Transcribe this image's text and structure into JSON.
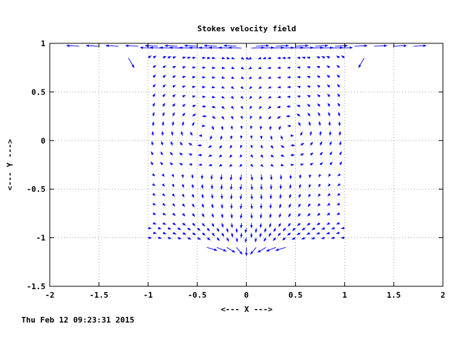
{
  "chart_data": {
    "type": "quiver",
    "title": "Stokes velocity field",
    "xlabel": "<--- X --->",
    "ylabel": "<--- Y --->",
    "xlim": [
      -2,
      2
    ],
    "ylim": [
      -1.5,
      1
    ],
    "xticks": [
      "-2",
      "-1.5",
      "-1",
      "-0.5",
      "0",
      "0.5",
      "1",
      "1.5",
      "2"
    ],
    "yticks": [
      "1",
      "0.5",
      "0",
      "-0.5",
      "-1",
      "-1.5"
    ],
    "xtick_values": [
      -2,
      -1.5,
      -1,
      -0.5,
      0,
      0.5,
      1,
      1.5,
      2
    ],
    "ytick_values": [
      1,
      0.5,
      0,
      -0.5,
      -1,
      -1.5
    ],
    "grid": true,
    "grid_style": "dotted",
    "domain_box": {
      "x": [
        -1,
        1
      ],
      "y": [
        -1,
        1
      ]
    },
    "sink_point": [
      0,
      -1.22
    ],
    "arrow_color": "#0000ff",
    "vectors_description": "Lid-driven cavity flow: counter-rotating vortices in each half of the unit box with a stagnation/sink point below the box at (0,-1.22)."
  },
  "timestamp": "Thu Feb 12 09:23:31 2015",
  "colors": {
    "arrows": "#0000ff",
    "axes": "#000000",
    "grid": "#a0a0a0",
    "background": "#ffffff"
  }
}
